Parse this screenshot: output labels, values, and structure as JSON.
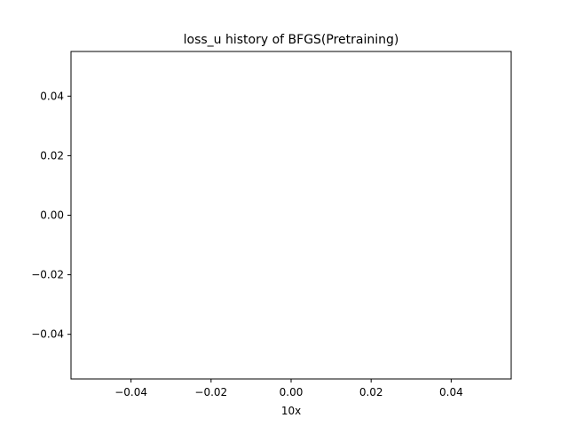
{
  "chart_data": {
    "type": "line",
    "title": "loss_u history of BFGS(Pretraining)",
    "xlabel": "10x",
    "ylabel": "",
    "series": [
      {
        "x": [],
        "values": []
      }
    ],
    "xlim": [
      -0.055,
      0.055
    ],
    "ylim": [
      -0.055,
      0.055
    ],
    "xticks": [
      -0.04,
      -0.02,
      0.0,
      0.02,
      0.04
    ],
    "xtick_labels": [
      "−0.04",
      "−0.02",
      "0.00",
      "0.02",
      "0.04"
    ],
    "yticks": [
      0.04,
      0.02,
      0.0,
      -0.02,
      -0.04
    ],
    "ytick_labels": [
      "0.04",
      "0.02",
      "0.00",
      "−0.02",
      "−0.04"
    ],
    "grid": false,
    "colors": {
      "axes": "#000000",
      "background": "#ffffff"
    }
  }
}
